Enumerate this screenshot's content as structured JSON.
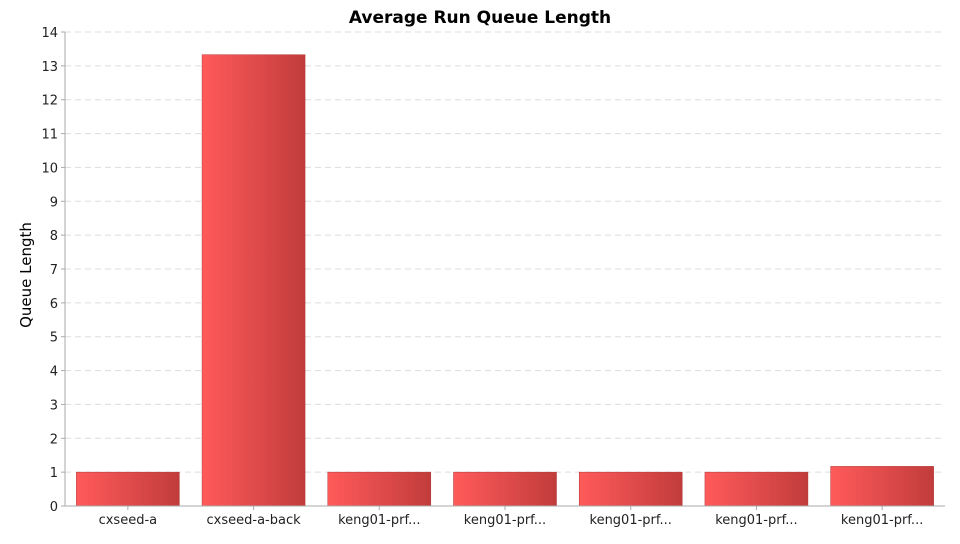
{
  "chart_data": {
    "type": "bar",
    "title": "Average Run Queue Length",
    "xlabel": "",
    "ylabel": "Queue Length",
    "categories": [
      "cxseed-a",
      "cxseed-a-back",
      "keng01-prf...",
      "keng01-prf...",
      "keng01-prf...",
      "keng01-prf...",
      "keng01-prf..."
    ],
    "values": [
      1,
      13.33,
      1,
      1,
      1,
      1,
      1.17
    ],
    "ylim": [
      0,
      14
    ],
    "yticks": [
      "0",
      "1",
      "2",
      "3",
      "4",
      "5",
      "6",
      "7",
      "8",
      "9",
      "10",
      "11",
      "12",
      "13",
      "14"
    ],
    "grid": true,
    "legend": "none",
    "colors": {
      "bar_light": "#ff5a5a",
      "bar_dark": "#c23c3c",
      "grid": "#dddddd",
      "axis": "#aaaaaa"
    }
  }
}
